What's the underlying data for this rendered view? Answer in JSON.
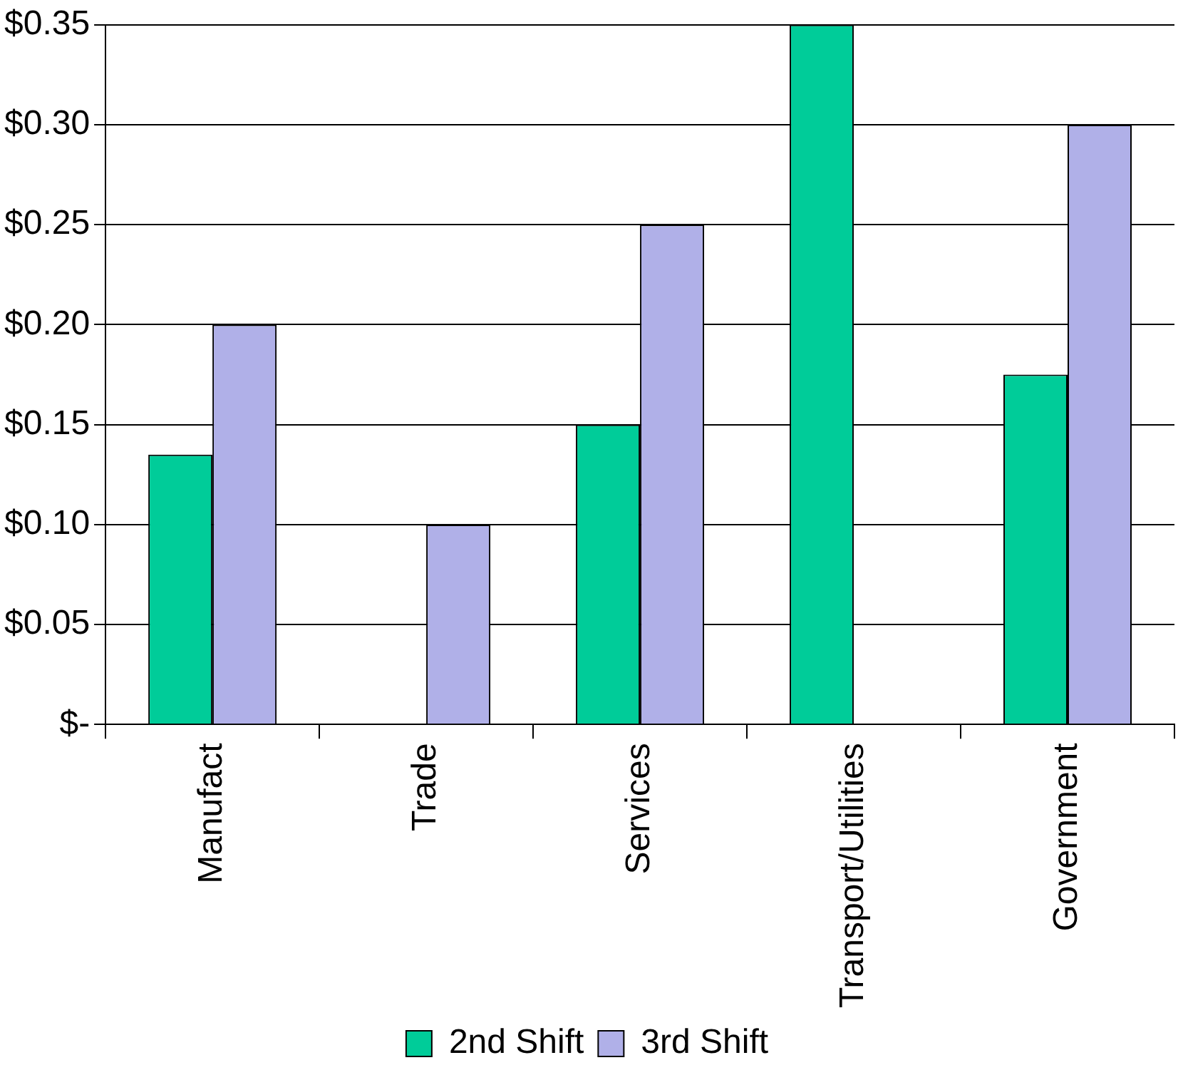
{
  "chart_data": {
    "type": "bar",
    "categories": [
      "Manufact",
      "Trade",
      "Services",
      "Transport/Utilities",
      "Government"
    ],
    "series": [
      {
        "name": "2nd Shift",
        "color": "#00cc99",
        "values": [
          0.135,
          null,
          0.15,
          0.35,
          0.175
        ]
      },
      {
        "name": "3rd Shift",
        "color": "#b0b0e8",
        "values": [
          0.2,
          0.1,
          0.25,
          null,
          0.3
        ]
      }
    ],
    "ylim": [
      0,
      0.35
    ],
    "yticks": [
      {
        "value": 0,
        "label": "$-"
      },
      {
        "value": 0.05,
        "label": "$0.05"
      },
      {
        "value": 0.1,
        "label": "$0.10"
      },
      {
        "value": 0.15,
        "label": "$0.15"
      },
      {
        "value": 0.2,
        "label": "$0.20"
      },
      {
        "value": 0.25,
        "label": "$0.25"
      },
      {
        "value": 0.3,
        "label": "$0.30"
      },
      {
        "value": 0.35,
        "label": "$0.35"
      }
    ],
    "grid": "y",
    "legend": "bottom"
  }
}
